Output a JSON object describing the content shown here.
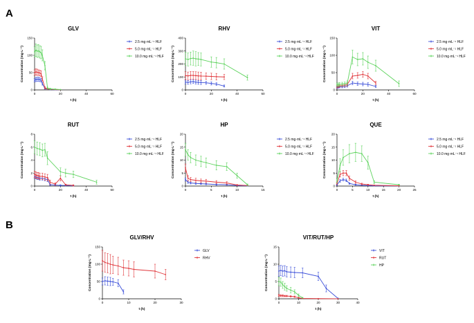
{
  "panel_labels": [
    "A",
    "B"
  ],
  "colors": {
    "blue": "#3b4fd9",
    "red": "#e0353a",
    "green": "#5dd35d"
  },
  "chart_data": [
    {
      "type": "line",
      "title": "GLV",
      "xlabel": "t (h)",
      "ylabel": "Concentration (mg·L⁻¹)",
      "xlim": [
        0,
        60
      ],
      "ylim": [
        0,
        150
      ],
      "xticks": [
        0,
        20,
        40,
        60
      ],
      "yticks": [
        0,
        50,
        100,
        150
      ],
      "series": [
        {
          "name": "2.5 mg·mL⁻¹ HLF",
          "color": "blue",
          "x": [
            0,
            1,
            2,
            3,
            4,
            5,
            6,
            8,
            10,
            12,
            16,
            20
          ],
          "y": [
            28,
            30,
            31,
            31,
            30,
            28,
            18,
            4,
            2,
            1,
            0.5,
            0.3
          ],
          "err": [
            5,
            6,
            6,
            6,
            6,
            5,
            4,
            2,
            1,
            0.5,
            0.3,
            0.2
          ]
        },
        {
          "name": "5.0 mg·mL⁻¹ HLF",
          "color": "red",
          "x": [
            0,
            1,
            2,
            3,
            4,
            5,
            6,
            8,
            10,
            12,
            16,
            20
          ],
          "y": [
            50,
            52,
            51,
            50,
            49,
            47,
            32,
            6,
            3,
            2,
            1,
            0.5
          ],
          "err": [
            8,
            9,
            9,
            8,
            8,
            8,
            6,
            3,
            2,
            1,
            0.5,
            0.3
          ]
        },
        {
          "name": "10.0 mg·mL⁻¹ HLF",
          "color": "green",
          "x": [
            0,
            1,
            2,
            3,
            4,
            5,
            6,
            8,
            10,
            12,
            16,
            20
          ],
          "y": [
            110,
            115,
            112,
            113,
            110,
            108,
            100,
            70,
            5,
            3,
            2,
            1
          ],
          "err": [
            15,
            18,
            18,
            18,
            18,
            18,
            16,
            12,
            3,
            2,
            1,
            0.5
          ]
        }
      ]
    },
    {
      "type": "line",
      "title": "RHV",
      "xlabel": "t (h)",
      "ylabel": "Concentration (mg·L⁻¹)",
      "xlim": [
        0,
        60
      ],
      "ylim": [
        0,
        400
      ],
      "xticks": [
        0,
        20,
        40,
        60
      ],
      "yticks": [
        0,
        100,
        200,
        300,
        400
      ],
      "series": [
        {
          "name": "2.5 mg·mL⁻¹ HLF",
          "color": "blue",
          "x": [
            0,
            2,
            4,
            6,
            8,
            10,
            12,
            16,
            20,
            24,
            30
          ],
          "y": [
            60,
            58,
            62,
            64,
            60,
            58,
            57,
            55,
            50,
            45,
            30
          ],
          "err": [
            15,
            15,
            15,
            15,
            15,
            15,
            15,
            12,
            12,
            10,
            8
          ]
        },
        {
          "name": "5.0 mg·mL⁻¹ HLF",
          "color": "red",
          "x": [
            0,
            2,
            4,
            6,
            8,
            10,
            12,
            16,
            20,
            24,
            30
          ],
          "y": [
            110,
            108,
            112,
            112,
            110,
            108,
            107,
            106,
            104,
            102,
            100
          ],
          "err": [
            30,
            30,
            30,
            30,
            30,
            30,
            30,
            25,
            25,
            25,
            20
          ]
        },
        {
          "name": "10.0 mg·mL⁻¹ HLF",
          "color": "green",
          "x": [
            0,
            2,
            4,
            6,
            8,
            10,
            12,
            20,
            24,
            30,
            48
          ],
          "y": [
            240,
            235,
            242,
            245,
            240,
            238,
            235,
            215,
            210,
            200,
            95
          ],
          "err": [
            50,
            50,
            50,
            55,
            55,
            50,
            50,
            40,
            40,
            40,
            20
          ]
        }
      ]
    },
    {
      "type": "line",
      "title": "VIT",
      "xlabel": "t (h)",
      "ylabel": "Concentration (mg·L⁻¹)",
      "xlim": [
        0,
        60
      ],
      "ylim": [
        0,
        150
      ],
      "xticks": [
        0,
        20,
        40,
        60
      ],
      "yticks": [
        0,
        50,
        100,
        150
      ],
      "series": [
        {
          "name": "2.5 mg·mL⁻¹ HLF",
          "color": "blue",
          "x": [
            0,
            1,
            2,
            4,
            6,
            8,
            12,
            16,
            20,
            24,
            30
          ],
          "y": [
            8,
            8,
            9,
            9,
            10,
            12,
            20,
            18,
            17,
            16,
            10
          ],
          "err": [
            3,
            3,
            3,
            3,
            3,
            4,
            5,
            5,
            5,
            5,
            3
          ]
        },
        {
          "name": "5.0 mg·mL⁻¹ HLF",
          "color": "red",
          "x": [
            0,
            1,
            2,
            4,
            6,
            8,
            12,
            16,
            20,
            24,
            30
          ],
          "y": [
            10,
            11,
            12,
            13,
            14,
            16,
            40,
            42,
            45,
            40,
            20
          ],
          "err": [
            4,
            4,
            4,
            4,
            4,
            5,
            8,
            8,
            8,
            8,
            5
          ]
        },
        {
          "name": "10.0 mg·mL⁻¹ HLF",
          "color": "green",
          "x": [
            0,
            1,
            2,
            4,
            6,
            8,
            12,
            16,
            20,
            24,
            30,
            48
          ],
          "y": [
            15,
            15,
            16,
            17,
            18,
            20,
            95,
            88,
            90,
            80,
            70,
            18
          ],
          "err": [
            5,
            5,
            5,
            5,
            5,
            6,
            20,
            18,
            18,
            18,
            16,
            8
          ]
        }
      ]
    },
    {
      "type": "line",
      "title": "RUT",
      "xlabel": "t (h)",
      "ylabel": "Concentration (mg·L⁻¹)",
      "xlim": [
        0,
        60
      ],
      "ylim": [
        0,
        8
      ],
      "xticks": [
        0,
        20,
        40,
        60
      ],
      "yticks": [
        0,
        2,
        4,
        6,
        8
      ],
      "series": [
        {
          "name": "2.5 mg·mL⁻¹ HLF",
          "color": "blue",
          "x": [
            0,
            1,
            2,
            3,
            4,
            6,
            8,
            10,
            12,
            16,
            20,
            24,
            30
          ],
          "y": [
            1.5,
            1.4,
            1.3,
            1.3,
            1.2,
            1.2,
            1.1,
            1.0,
            0.2,
            0.15,
            0.1,
            0.1,
            0.05
          ],
          "err": [
            0.3,
            0.3,
            0.3,
            0.3,
            0.3,
            0.3,
            0.3,
            0.3,
            0.1,
            0.1,
            0.1,
            0.1,
            0.05
          ]
        },
        {
          "name": "5.0 mg·mL⁻¹ HLF",
          "color": "red",
          "x": [
            0,
            1,
            2,
            3,
            4,
            6,
            8,
            10,
            12,
            16,
            20,
            24,
            30
          ],
          "y": [
            1.8,
            1.7,
            1.6,
            1.6,
            1.5,
            1.5,
            1.4,
            1.3,
            0.6,
            0.3,
            1.2,
            0.2,
            0.1
          ],
          "err": [
            0.5,
            0.5,
            0.5,
            0.5,
            0.5,
            0.5,
            0.5,
            0.5,
            0.3,
            0.2,
            0.4,
            0.1,
            0.1
          ]
        },
        {
          "name": "10.0 mg·mL⁻¹ HLF",
          "color": "green",
          "x": [
            0,
            2,
            4,
            6,
            8,
            10,
            20,
            24,
            30,
            48
          ],
          "y": [
            6.0,
            5.8,
            5.7,
            5.5,
            5.6,
            4.3,
            2.2,
            2.0,
            1.8,
            0.6
          ],
          "err": [
            1.0,
            1.0,
            1.0,
            1.0,
            1.0,
            1.0,
            0.6,
            0.6,
            0.5,
            0.3
          ]
        }
      ]
    },
    {
      "type": "line",
      "title": "HP",
      "xlabel": "t (h)",
      "ylabel": "Concentration (mg·L⁻¹)",
      "xlim": [
        0,
        15
      ],
      "ylim": [
        0,
        20
      ],
      "xticks": [
        0,
        5,
        10,
        15
      ],
      "yticks": [
        0,
        5,
        10,
        15,
        20
      ],
      "series": [
        {
          "name": "2.5 mg·mL⁻¹ HLF",
          "color": "blue",
          "x": [
            0,
            0.5,
            1,
            2,
            3,
            4,
            6,
            8,
            10,
            12
          ],
          "y": [
            2.5,
            1.5,
            1.2,
            1.0,
            0.9,
            0.8,
            0.6,
            0.5,
            0.2,
            0.1
          ],
          "err": [
            0.6,
            0.5,
            0.4,
            0.4,
            0.3,
            0.3,
            0.3,
            0.2,
            0.1,
            0.1
          ]
        },
        {
          "name": "5.0 mg·mL⁻¹ HLF",
          "color": "red",
          "x": [
            0,
            0.5,
            1,
            2,
            3,
            4,
            6,
            8,
            10,
            12
          ],
          "y": [
            7.0,
            3.0,
            2.5,
            2.2,
            2.0,
            1.9,
            1.5,
            1.2,
            0.4,
            0.2
          ],
          "err": [
            1.5,
            1.0,
            0.8,
            0.8,
            0.7,
            0.7,
            0.6,
            0.5,
            0.2,
            0.1
          ]
        },
        {
          "name": "10.0 mg·mL⁻¹ HLF",
          "color": "green",
          "x": [
            0,
            0.5,
            1,
            2,
            3,
            4,
            6,
            8,
            10,
            12
          ],
          "y": [
            14,
            12,
            11,
            10,
            9.5,
            9.0,
            8.0,
            7.5,
            4.0,
            0.5
          ],
          "err": [
            2.5,
            2,
            2,
            2,
            2,
            1.8,
            1.8,
            1.5,
            1.0,
            0.3
          ]
        }
      ]
    },
    {
      "type": "line",
      "title": "QUE",
      "xlabel": "t (h)",
      "ylabel": "Concentration (mg·L⁻¹)",
      "xlim": [
        0,
        25
      ],
      "ylim": [
        0,
        20
      ],
      "xticks": [
        0,
        5,
        10,
        15,
        20,
        25
      ],
      "yticks": [
        0,
        5,
        10,
        15,
        20
      ],
      "series": [
        {
          "name": "2.5 mg·mL⁻¹ HLF",
          "color": "blue",
          "x": [
            0,
            1,
            2,
            3,
            4,
            6,
            8,
            10,
            12,
            20
          ],
          "y": [
            0.5,
            2.0,
            2.5,
            2.2,
            1.0,
            0.5,
            0.3,
            0.2,
            0.1,
            0.05
          ],
          "err": [
            0.2,
            0.5,
            0.5,
            0.5,
            0.3,
            0.2,
            0.1,
            0.1,
            0.05,
            0.05
          ]
        },
        {
          "name": "5.0 mg·mL⁻¹ HLF",
          "color": "red",
          "x": [
            0,
            1,
            2,
            3,
            4,
            6,
            8,
            10,
            12,
            20
          ],
          "y": [
            1.0,
            4.5,
            5.0,
            5.0,
            3.0,
            1.5,
            0.8,
            0.5,
            0.3,
            0.1
          ],
          "err": [
            0.4,
            1.0,
            1.0,
            1.0,
            0.8,
            0.5,
            0.3,
            0.2,
            0.1,
            0.1
          ]
        },
        {
          "name": "10.0 mg·mL⁻¹ HLF",
          "color": "green",
          "x": [
            0,
            1,
            2,
            4,
            6,
            8,
            10,
            12,
            20
          ],
          "y": [
            2.0,
            8.0,
            11.0,
            12.5,
            13.0,
            12.5,
            9.0,
            1.5,
            0.5
          ],
          "err": [
            0.8,
            2.5,
            3.0,
            3.5,
            3.5,
            3.0,
            2.5,
            0.6,
            0.2
          ]
        }
      ]
    },
    {
      "type": "line",
      "title": "GLV/RHV",
      "xlabel": "t (h)",
      "ylabel": "Concentration (mg·L⁻¹)",
      "xlim": [
        0,
        30
      ],
      "ylim": [
        0,
        150
      ],
      "xticks": [
        0,
        10,
        20,
        30
      ],
      "yticks": [
        0,
        50,
        100,
        150
      ],
      "series": [
        {
          "name": "GLV",
          "color": "blue",
          "x": [
            0,
            1,
            2,
            3,
            4,
            6,
            8
          ],
          "y": [
            50,
            52,
            51,
            50,
            49,
            45,
            20
          ],
          "err": [
            10,
            12,
            12,
            12,
            10,
            10,
            6
          ]
        },
        {
          "name": "RHV",
          "color": "red",
          "x": [
            0,
            1,
            2,
            3,
            4,
            6,
            8,
            10,
            12,
            20,
            24
          ],
          "y": [
            110,
            105,
            103,
            100,
            98,
            95,
            90,
            88,
            85,
            80,
            70
          ],
          "err": [
            30,
            28,
            28,
            28,
            25,
            25,
            22,
            22,
            22,
            20,
            15
          ]
        }
      ]
    },
    {
      "type": "line",
      "title": "VIT/RUT/HP",
      "xlabel": "t (h)",
      "ylabel": "Concentration (mg·L⁻¹)",
      "xlim": [
        0,
        40
      ],
      "ylim": [
        0,
        15
      ],
      "xticks": [
        0,
        10,
        20,
        30,
        40
      ],
      "yticks": [
        0,
        5,
        10,
        15
      ],
      "series": [
        {
          "name": "VIT",
          "color": "blue",
          "x": [
            0,
            1,
            2,
            3,
            4,
            6,
            8,
            12,
            20,
            24,
            30
          ],
          "y": [
            8.0,
            8.2,
            8.0,
            8.1,
            7.8,
            7.7,
            7.6,
            7.5,
            6.5,
            3.0,
            0.1
          ],
          "err": [
            1.5,
            1.5,
            1.5,
            1.5,
            1.5,
            1.5,
            1.5,
            1.4,
            1.2,
            1.0,
            0.1
          ]
        },
        {
          "name": "RUT",
          "color": "red",
          "x": [
            0,
            1,
            2,
            3,
            4,
            6,
            8,
            10,
            12,
            20,
            30
          ],
          "y": [
            1.0,
            0.9,
            0.9,
            0.8,
            0.8,
            0.7,
            0.6,
            0.3,
            0.1,
            0.05,
            0.02
          ],
          "err": [
            0.3,
            0.3,
            0.3,
            0.2,
            0.2,
            0.2,
            0.2,
            0.1,
            0.05,
            0.05,
            0.02
          ]
        },
        {
          "name": "HP",
          "color": "green",
          "x": [
            0,
            1,
            2,
            3,
            4,
            6,
            8,
            10,
            12
          ],
          "y": [
            5.0,
            4.8,
            4.0,
            3.5,
            3.0,
            2.5,
            2.0,
            1.0,
            0.3
          ],
          "err": [
            1.2,
            1.2,
            1.0,
            1.0,
            0.8,
            0.8,
            0.6,
            0.4,
            0.1
          ]
        }
      ]
    }
  ]
}
